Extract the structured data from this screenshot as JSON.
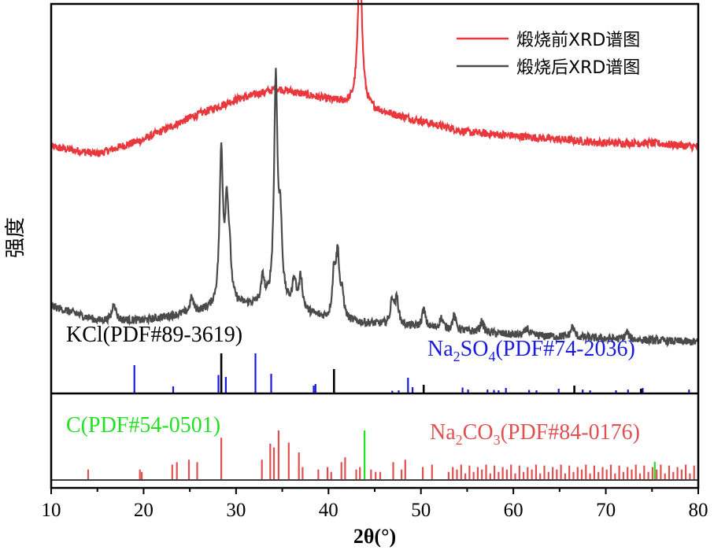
{
  "chart_data": {
    "type": "line",
    "xlabel": "2θ(°)",
    "ylabel": "强度",
    "xlim": [
      10,
      80
    ],
    "x_ticks": [
      "10",
      "20",
      "30",
      "40",
      "50",
      "60",
      "70",
      "80"
    ],
    "grid": false,
    "legend_position": "top-right",
    "series": [
      {
        "name": "煅烧前XRD谱图",
        "color": "#e8383d",
        "peaks": [
          {
            "x": 43.4,
            "intensity": 0.4
          }
        ],
        "baseline": [
          [
            10,
            0.66
          ],
          [
            15,
            0.64
          ],
          [
            20,
            0.68
          ],
          [
            25,
            0.74
          ],
          [
            30,
            0.79
          ],
          [
            34.5,
            0.82
          ],
          [
            40,
            0.79
          ],
          [
            45,
            0.76
          ],
          [
            50,
            0.73
          ],
          [
            55,
            0.7
          ],
          [
            60,
            0.69
          ],
          [
            65,
            0.68
          ],
          [
            70,
            0.67
          ],
          [
            75,
            0.67
          ],
          [
            80,
            0.66
          ]
        ]
      },
      {
        "name": "煅烧后XRD谱图",
        "color": "#4a4a4a",
        "peaks": [
          {
            "x": 16.8,
            "intensity": 0.05
          },
          {
            "x": 25.2,
            "intensity": 0.04
          },
          {
            "x": 28.4,
            "intensity": 0.42
          },
          {
            "x": 29.0,
            "intensity": 0.25
          },
          {
            "x": 29.3,
            "intensity": 0.1
          },
          {
            "x": 32.9,
            "intensity": 0.07
          },
          {
            "x": 34.3,
            "intensity": 0.62
          },
          {
            "x": 34.8,
            "intensity": 0.2
          },
          {
            "x": 36.3,
            "intensity": 0.08
          },
          {
            "x": 37.0,
            "intensity": 0.09
          },
          {
            "x": 40.6,
            "intensity": 0.12
          },
          {
            "x": 41.0,
            "intensity": 0.17
          },
          {
            "x": 41.5,
            "intensity": 0.06
          },
          {
            "x": 46.9,
            "intensity": 0.07
          },
          {
            "x": 47.4,
            "intensity": 0.07
          },
          {
            "x": 50.3,
            "intensity": 0.05
          },
          {
            "x": 52.2,
            "intensity": 0.03
          },
          {
            "x": 53.6,
            "intensity": 0.04
          },
          {
            "x": 56.6,
            "intensity": 0.03
          },
          {
            "x": 61.5,
            "intensity": 0.02
          },
          {
            "x": 66.4,
            "intensity": 0.03
          },
          {
            "x": 72.3,
            "intensity": 0.02
          }
        ],
        "baseline": [
          [
            10,
            0.22
          ],
          [
            15,
            0.18
          ],
          [
            20,
            0.18
          ],
          [
            25,
            0.2
          ],
          [
            30,
            0.22
          ],
          [
            35,
            0.22
          ],
          [
            40,
            0.18
          ],
          [
            45,
            0.17
          ],
          [
            50,
            0.16
          ],
          [
            60,
            0.14
          ],
          [
            70,
            0.13
          ],
          [
            80,
            0.12
          ]
        ]
      }
    ],
    "reference_panels": [
      {
        "name": "KCl(PDF#89-3619)",
        "color": "#000000",
        "sticks": [
          [
            28.4,
            1.0
          ],
          [
            40.6,
            0.6
          ],
          [
            50.3,
            0.2
          ],
          [
            66.6,
            0.18
          ],
          [
            73.8,
            0.1
          ]
        ]
      },
      {
        "name_parts": [
          "Na",
          "2",
          "SO",
          "4",
          "(PDF#74-2036)"
        ],
        "color": "#1a1adc",
        "sticks": [
          [
            19.0,
            0.7
          ],
          [
            23.2,
            0.16
          ],
          [
            28.1,
            0.45
          ],
          [
            28.9,
            0.4
          ],
          [
            32.1,
            1.0
          ],
          [
            33.8,
            0.48
          ],
          [
            38.4,
            0.18
          ],
          [
            38.6,
            0.22
          ],
          [
            46.9,
            0.05
          ],
          [
            47.6,
            0.06
          ],
          [
            48.6,
            0.38
          ],
          [
            49.1,
            0.14
          ],
          [
            54.5,
            0.13
          ],
          [
            55.1,
            0.08
          ],
          [
            57.2,
            0.08
          ],
          [
            57.9,
            0.07
          ],
          [
            58.4,
            0.06
          ],
          [
            59.2,
            0.12
          ],
          [
            61.7,
            0.07
          ],
          [
            62.5,
            0.06
          ],
          [
            64.9,
            0.1
          ],
          [
            67.5,
            0.08
          ],
          [
            68.3,
            0.06
          ],
          [
            71.1,
            0.06
          ],
          [
            72.4,
            0.08
          ],
          [
            74.0,
            0.12
          ],
          [
            79.0,
            0.08
          ]
        ]
      },
      {
        "name": "C(PDF#54-0501)",
        "color": "#22e022",
        "sticks": [
          [
            43.9,
            1.0
          ],
          [
            75.3,
            0.36
          ]
        ]
      },
      {
        "name_parts": [
          "Na",
          "2",
          "CO",
          "3",
          "(PDF#84-0176)"
        ],
        "color": "#e05050",
        "sticks": [
          [
            14.0,
            0.2
          ],
          [
            19.6,
            0.2
          ],
          [
            19.8,
            0.15
          ],
          [
            23.1,
            0.3
          ],
          [
            23.6,
            0.35
          ],
          [
            24.9,
            0.4
          ],
          [
            25.8,
            0.35
          ],
          [
            28.4,
            0.85
          ],
          [
            32.8,
            0.4
          ],
          [
            33.7,
            0.73
          ],
          [
            34.1,
            0.65
          ],
          [
            34.6,
            1.0
          ],
          [
            35.7,
            0.75
          ],
          [
            36.8,
            0.55
          ],
          [
            37.2,
            0.25
          ],
          [
            38.9,
            0.2
          ],
          [
            39.9,
            0.25
          ],
          [
            40.3,
            0.15
          ],
          [
            41.4,
            0.35
          ],
          [
            41.8,
            0.45
          ],
          [
            43.0,
            0.2
          ],
          [
            43.4,
            0.25
          ],
          [
            44.6,
            0.2
          ],
          [
            45.1,
            0.15
          ],
          [
            45.6,
            0.15
          ],
          [
            47.0,
            0.35
          ],
          [
            47.9,
            0.2
          ],
          [
            48.3,
            0.4
          ],
          [
            50.2,
            0.25
          ],
          [
            51.2,
            0.3
          ]
        ],
        "dense_region": {
          "from": 53,
          "to": 80,
          "spacing": 0.45,
          "heights": [
            0.15,
            0.25,
            0.2,
            0.3,
            0.12,
            0.28
          ]
        }
      }
    ]
  }
}
